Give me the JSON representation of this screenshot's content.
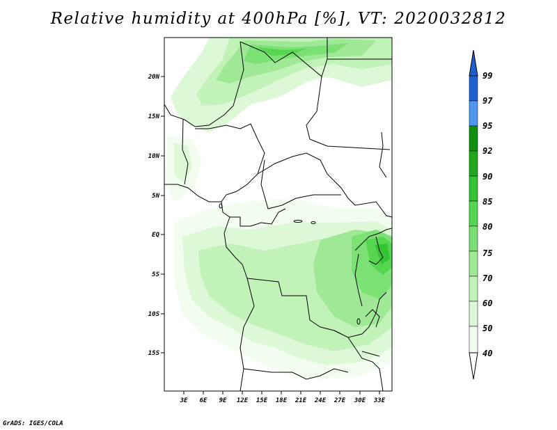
{
  "title": "Relative humidity at 400hPa [%], VT: 2020032812",
  "credit": "GrADS: IGES/COLA",
  "map": {
    "lat_labels": [
      "20N",
      "15N",
      "10N",
      "5N",
      "EQ",
      "5S",
      "10S",
      "15S"
    ],
    "lon_labels": [
      "3E",
      "6E",
      "9E",
      "12E",
      "15E",
      "18E",
      "21E",
      "24E",
      "27E",
      "30E",
      "33E"
    ]
  },
  "colorbar": {
    "levels": [
      "99",
      "97",
      "95",
      "92",
      "90",
      "85",
      "80",
      "75",
      "70",
      "60",
      "50",
      "40"
    ],
    "colors": {
      "99": "#1f5fd0",
      "97": "#2f78e0",
      "95": "#4f98f0",
      "92": "#10900e",
      "90": "#1fa81a",
      "85": "#35c432",
      "80": "#55d650",
      "75": "#7be174",
      "70": "#9fe996",
      "60": "#c1f2b8",
      "50": "#dcf8d6",
      "40": "#f2fdf0"
    }
  }
}
